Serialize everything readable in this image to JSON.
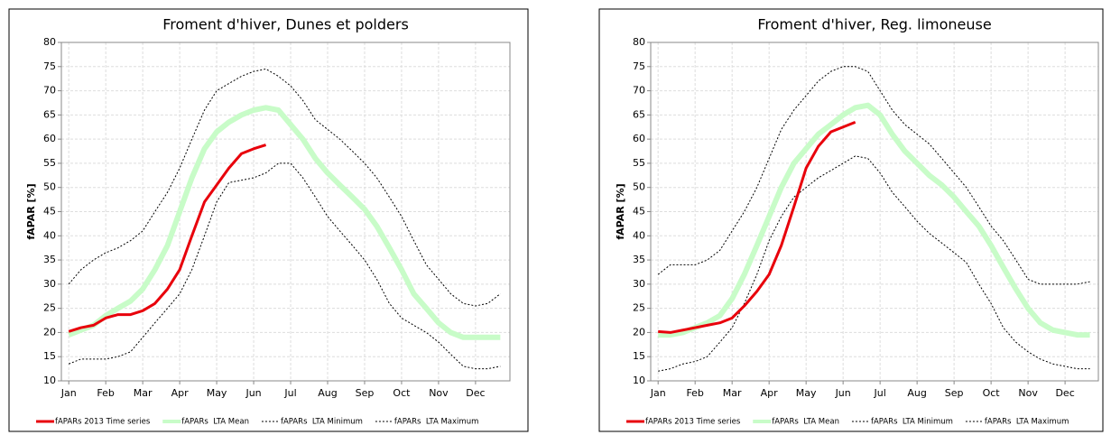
{
  "chart_data": [
    {
      "type": "line",
      "title": "Froment d'hiver, Dunes et polders",
      "y_label": "fAPAR [%]",
      "x": [
        1,
        1.33,
        1.67,
        2,
        2.33,
        2.67,
        3,
        3.33,
        3.67,
        4,
        4.33,
        4.67,
        5,
        5.33,
        5.67,
        6,
        6.33,
        6.67,
        7,
        7.33,
        7.67,
        8,
        8.33,
        8.67,
        9,
        9.33,
        9.67,
        10,
        10.33,
        10.67,
        11,
        11.33,
        11.67,
        12,
        12.33,
        12.67
      ],
      "xlim": [
        0.8,
        12.93
      ],
      "xticks": [
        {
          "value": 1,
          "label": "Jan"
        },
        {
          "value": 2,
          "label": "Feb"
        },
        {
          "value": 3,
          "label": "Mar"
        },
        {
          "value": 4,
          "label": "Apr"
        },
        {
          "value": 5,
          "label": "May"
        },
        {
          "value": 6,
          "label": "Jun"
        },
        {
          "value": 7,
          "label": "Jul"
        },
        {
          "value": 8,
          "label": "Aug"
        },
        {
          "value": 9,
          "label": "Sep"
        },
        {
          "value": 10,
          "label": "Oct"
        },
        {
          "value": 11,
          "label": "Nov"
        },
        {
          "value": 12,
          "label": "Dec"
        }
      ],
      "ylim": [
        10,
        80
      ],
      "yticks": [
        10,
        15,
        20,
        25,
        30,
        35,
        40,
        45,
        50,
        55,
        60,
        65,
        70,
        75,
        80
      ],
      "grid": true,
      "legend": "bottom",
      "series": [
        {
          "name": "fAPARs 2013 Time series",
          "color": "#e8000b",
          "style": "solid",
          "width": 3,
          "values": [
            20.2,
            21,
            21.5,
            23,
            23.7,
            23.7,
            24.5,
            26,
            29,
            33,
            40,
            47,
            50.5,
            54,
            57,
            58,
            58.8,
            null,
            null,
            null,
            null,
            null,
            null,
            null,
            null,
            null,
            null,
            null,
            null,
            null,
            null,
            null,
            null,
            null,
            null,
            null
          ]
        },
        {
          "name": "fAPARs  LTA Mean",
          "color": "#c8fcc8",
          "style": "solid",
          "width": 6,
          "values": [
            19.5,
            20.5,
            21.5,
            23.5,
            25,
            26.5,
            29,
            33,
            38,
            45,
            52,
            58,
            61.5,
            63.5,
            65,
            66,
            66.5,
            66,
            63,
            60,
            56,
            53,
            50.5,
            48,
            45.5,
            42,
            37.5,
            33,
            28,
            25,
            22,
            20,
            19,
            19,
            19,
            19
          ]
        },
        {
          "name": "fAPARs  LTA Minimum",
          "color": "#000000",
          "style": "dotted",
          "width": 1,
          "values": [
            13.5,
            14.5,
            14.5,
            14.5,
            15,
            16,
            19,
            22,
            25,
            28,
            33,
            40,
            47,
            51,
            51.5,
            52,
            53,
            55,
            55,
            52,
            48,
            44,
            41,
            38,
            35,
            31,
            26,
            23,
            21.5,
            20,
            18,
            15.5,
            13,
            12.5,
            12.5,
            13
          ]
        },
        {
          "name": "fAPARs  LTA Maximum",
          "color": "#000000",
          "style": "dotted",
          "width": 1,
          "values": [
            30,
            33,
            35,
            36.5,
            37.5,
            39,
            41,
            45,
            49,
            54,
            60,
            66,
            70,
            71.5,
            73,
            74,
            74.5,
            73,
            71,
            68,
            64,
            62,
            60,
            57.5,
            55,
            52,
            48,
            44,
            39,
            34,
            31,
            28,
            26,
            25.5,
            26,
            28
          ]
        }
      ]
    },
    {
      "type": "line",
      "title": "Froment d'hiver, Reg. limoneuse",
      "y_label": "fAPAR [%]",
      "x": [
        1,
        1.33,
        1.67,
        2,
        2.33,
        2.67,
        3,
        3.33,
        3.67,
        4,
        4.33,
        4.67,
        5,
        5.33,
        5.67,
        6,
        6.33,
        6.67,
        7,
        7.33,
        7.67,
        8,
        8.33,
        8.67,
        9,
        9.33,
        9.67,
        10,
        10.33,
        10.67,
        11,
        11.33,
        11.67,
        12,
        12.33,
        12.67
      ],
      "xlim": [
        0.8,
        12.9
      ],
      "xticks": [
        {
          "value": 1,
          "label": "Jan"
        },
        {
          "value": 2,
          "label": "Feb"
        },
        {
          "value": 3,
          "label": "Mar"
        },
        {
          "value": 4,
          "label": "Apr"
        },
        {
          "value": 5,
          "label": "May"
        },
        {
          "value": 6,
          "label": "Jun"
        },
        {
          "value": 7,
          "label": "Jul"
        },
        {
          "value": 8,
          "label": "Aug"
        },
        {
          "value": 9,
          "label": "Sep"
        },
        {
          "value": 10,
          "label": "Oct"
        },
        {
          "value": 11,
          "label": "Nov"
        },
        {
          "value": 12,
          "label": "Dec"
        }
      ],
      "ylim": [
        10,
        80
      ],
      "yticks": [
        10,
        15,
        20,
        25,
        30,
        35,
        40,
        45,
        50,
        55,
        60,
        65,
        70,
        75,
        80
      ],
      "grid": true,
      "legend": "bottom",
      "series": [
        {
          "name": "fAPARs 2013 Time series",
          "color": "#e8000b",
          "style": "solid",
          "width": 3,
          "values": [
            20.2,
            20,
            20.5,
            21,
            21.5,
            22,
            23,
            25.5,
            28.5,
            32,
            38,
            46,
            54,
            58.5,
            61.5,
            62.5,
            63.5,
            null,
            null,
            null,
            null,
            null,
            null,
            null,
            null,
            null,
            null,
            null,
            null,
            null,
            null,
            null,
            null,
            null,
            null,
            null
          ]
        },
        {
          "name": "fAPARs  LTA Mean",
          "color": "#c8fcc8",
          "style": "solid",
          "width": 6,
          "values": [
            19.5,
            19.5,
            20,
            21,
            22,
            23.5,
            27,
            32,
            38,
            44,
            50,
            55,
            58,
            61,
            63,
            65,
            66.5,
            67,
            65,
            61,
            57.5,
            55,
            52.5,
            50.5,
            48,
            45,
            42,
            38,
            33.5,
            29,
            25,
            22,
            20.5,
            20,
            19.5,
            19.5
          ]
        },
        {
          "name": "fAPARs  LTA Minimum",
          "color": "#000000",
          "style": "dotted",
          "width": 1,
          "values": [
            12,
            12.5,
            13.5,
            14,
            15,
            18,
            21,
            26,
            32,
            39,
            44,
            48,
            50,
            52,
            53.5,
            55,
            56.5,
            56,
            53,
            49,
            46,
            43,
            40.5,
            38.5,
            36.5,
            34.5,
            30,
            26,
            21,
            18,
            16,
            14.5,
            13.5,
            13,
            12.5,
            12.5
          ]
        },
        {
          "name": "fAPARs  LTA Maximum",
          "color": "#000000",
          "style": "dotted",
          "width": 1,
          "values": [
            32,
            34,
            34,
            34,
            35,
            37,
            41,
            45,
            50,
            56,
            62,
            66,
            69,
            72,
            74,
            75,
            75,
            74,
            70,
            66,
            63,
            61,
            59,
            56,
            53,
            50,
            46,
            42,
            39,
            35,
            31,
            30,
            30,
            30,
            30,
            30.5
          ]
        }
      ]
    }
  ]
}
